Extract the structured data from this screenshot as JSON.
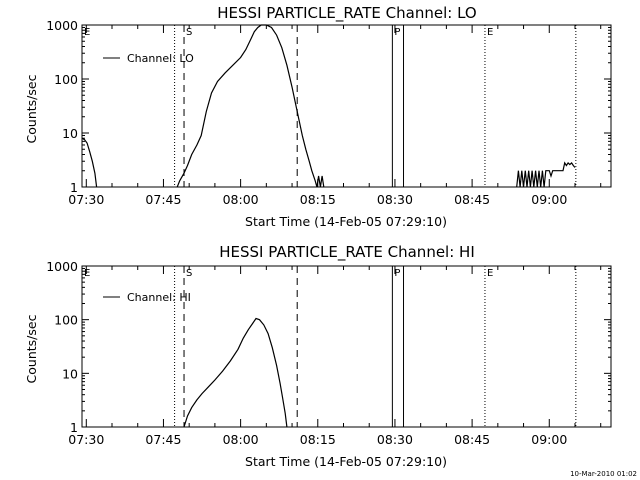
{
  "footer_timestamp": "10-Mar-2010 01:02",
  "chart_data": [
    {
      "type": "line",
      "title": "HESSI PARTICLE_RATE Channel: LO",
      "xlabel": "Start Time (14-Feb-05 07:29:10)",
      "ylabel": "Counts/sec",
      "y_scale": "log",
      "ylim": [
        1,
        1000
      ],
      "y_ticks": [
        {
          "value": 1,
          "label": "1"
        },
        {
          "value": 10,
          "label": "10"
        },
        {
          "value": 100,
          "label": "100"
        },
        {
          "value": 1000,
          "label": "1000"
        }
      ],
      "xlim": [
        "07:29:10",
        "09:12:00"
      ],
      "x_ticks": [
        {
          "time": "07:30",
          "label": "07:30"
        },
        {
          "time": "07:45",
          "label": "07:45"
        },
        {
          "time": "08:00",
          "label": "08:00"
        },
        {
          "time": "08:15",
          "label": "08:15"
        },
        {
          "time": "08:30",
          "label": "08:30"
        },
        {
          "time": "08:45",
          "label": "08:45"
        },
        {
          "time": "09:00",
          "label": "09:00"
        }
      ],
      "legend": {
        "label": "Channel: LO",
        "position": "top-left"
      },
      "markers": [
        {
          "time": "07:29:10",
          "label": "E",
          "style": "dotted"
        },
        {
          "time": "07:47:10",
          "label": "",
          "style": "dotted"
        },
        {
          "time": "07:49:00",
          "label": "S",
          "style": "dashed"
        },
        {
          "time": "08:11:00",
          "label": "",
          "style": "dashed"
        },
        {
          "time": "08:29:30",
          "label": "P",
          "style": "solid"
        },
        {
          "time": "08:31:40",
          "label": "",
          "style": "solid"
        },
        {
          "time": "08:47:30",
          "label": "E",
          "style": "dotted"
        },
        {
          "time": "09:05:10",
          "label": "",
          "style": "dotted"
        }
      ],
      "series": [
        {
          "name": "Channel: LO",
          "segments": [
            [
              [
                "07:29:10",
                8
              ],
              [
                "07:29:40",
                7.5
              ],
              [
                "07:30:10",
                6.5
              ],
              [
                "07:30:40",
                4.5
              ],
              [
                "07:31:10",
                3
              ],
              [
                "07:31:40",
                1.8
              ],
              [
                "07:32:00",
                1
              ]
            ],
            [
              [
                "07:47:40",
                1
              ],
              [
                "07:48:10",
                1.3
              ],
              [
                "07:49:00",
                1.8
              ],
              [
                "07:49:40",
                2.5
              ],
              [
                "07:50:30",
                4
              ],
              [
                "07:51:30",
                6
              ],
              [
                "07:52:20",
                9
              ],
              [
                "07:53:20",
                25
              ],
              [
                "07:54:20",
                55
              ],
              [
                "07:55:30",
                90
              ],
              [
                "07:57:00",
                130
              ],
              [
                "07:58:30",
                180
              ],
              [
                "08:00:00",
                250
              ],
              [
                "08:01:00",
                350
              ],
              [
                "08:02:00",
                550
              ],
              [
                "08:02:40",
                750
              ],
              [
                "08:03:20",
                900
              ],
              [
                "08:04:00",
                1000
              ],
              [
                "08:05:00",
                1000
              ],
              [
                "08:06:00",
                900
              ],
              [
                "08:07:00",
                650
              ],
              [
                "08:08:00",
                380
              ],
              [
                "08:09:00",
                180
              ],
              [
                "08:10:00",
                70
              ],
              [
                "08:11:00",
                25
              ],
              [
                "08:12:00",
                9
              ],
              [
                "08:12:40",
                5
              ],
              [
                "08:13:20",
                3
              ],
              [
                "08:13:50",
                2
              ],
              [
                "08:14:30",
                1.3
              ],
              [
                "08:14:50",
                1
              ],
              [
                "08:15:10",
                1.6
              ],
              [
                "08:15:30",
                1
              ],
              [
                "08:15:50",
                1.6
              ],
              [
                "08:16:10",
                1
              ]
            ],
            [
              [
                "08:53:40",
                1
              ],
              [
                "08:54:00",
                2
              ],
              [
                "08:54:20",
                1
              ],
              [
                "08:54:40",
                2
              ],
              [
                "08:55:00",
                1
              ],
              [
                "08:55:20",
                2
              ],
              [
                "08:55:40",
                1
              ],
              [
                "08:56:00",
                2
              ],
              [
                "08:56:20",
                1
              ],
              [
                "08:56:40",
                2
              ],
              [
                "08:57:00",
                1
              ],
              [
                "08:57:20",
                2
              ],
              [
                "08:57:40",
                1
              ],
              [
                "08:58:00",
                2
              ],
              [
                "08:58:20",
                1
              ],
              [
                "08:58:40",
                2
              ],
              [
                "08:59:00",
                1
              ],
              [
                "08:59:20",
                2
              ],
              [
                "08:59:40",
                2
              ],
              [
                "09:00:00",
                2
              ],
              [
                "09:00:20",
                1.6
              ],
              [
                "09:00:40",
                2
              ],
              [
                "09:01:00",
                2
              ],
              [
                "09:01:20",
                2
              ],
              [
                "09:01:40",
                2
              ],
              [
                "09:02:00",
                2
              ],
              [
                "09:02:20",
                2
              ],
              [
                "09:02:40",
                2
              ],
              [
                "09:03:00",
                2.8
              ],
              [
                "09:03:20",
                2.5
              ],
              [
                "09:03:40",
                2.8
              ],
              [
                "09:04:00",
                2.6
              ],
              [
                "09:04:20",
                2.8
              ],
              [
                "09:04:40",
                2.5
              ],
              [
                "09:05:00",
                2.3
              ]
            ]
          ]
        }
      ]
    },
    {
      "type": "line",
      "title": "HESSI PARTICLE_RATE Channel: HI",
      "xlabel": "Start Time (14-Feb-05 07:29:10)",
      "ylabel": "Counts/sec",
      "y_scale": "log",
      "ylim": [
        1,
        1000
      ],
      "y_ticks": [
        {
          "value": 1,
          "label": "1"
        },
        {
          "value": 10,
          "label": "10"
        },
        {
          "value": 100,
          "label": "100"
        },
        {
          "value": 1000,
          "label": "1000"
        }
      ],
      "xlim": [
        "07:29:10",
        "09:12:00"
      ],
      "x_ticks": [
        {
          "time": "07:30",
          "label": "07:30"
        },
        {
          "time": "07:45",
          "label": "07:45"
        },
        {
          "time": "08:00",
          "label": "08:00"
        },
        {
          "time": "08:15",
          "label": "08:15"
        },
        {
          "time": "08:30",
          "label": "08:30"
        },
        {
          "time": "08:45",
          "label": "08:45"
        },
        {
          "time": "09:00",
          "label": "09:00"
        }
      ],
      "legend": {
        "label": "Channel: HI",
        "position": "top-left"
      },
      "markers": [
        {
          "time": "07:29:10",
          "label": "E",
          "style": "dotted"
        },
        {
          "time": "07:47:10",
          "label": "",
          "style": "dotted"
        },
        {
          "time": "07:49:00",
          "label": "S",
          "style": "dashed"
        },
        {
          "time": "08:11:00",
          "label": "",
          "style": "dashed"
        },
        {
          "time": "08:29:30",
          "label": "P",
          "style": "solid"
        },
        {
          "time": "08:31:40",
          "label": "",
          "style": "solid"
        },
        {
          "time": "08:47:30",
          "label": "E",
          "style": "dotted"
        },
        {
          "time": "09:05:10",
          "label": "",
          "style": "dotted"
        }
      ],
      "series": [
        {
          "name": "Channel: HI",
          "segments": [
            [
              [
                "07:49:00",
                1
              ],
              [
                "07:49:40",
                1.6
              ],
              [
                "07:50:30",
                2.3
              ],
              [
                "07:51:30",
                3.2
              ],
              [
                "07:52:30",
                4.2
              ],
              [
                "07:53:40",
                5.5
              ],
              [
                "07:55:00",
                7.5
              ],
              [
                "07:56:30",
                11
              ],
              [
                "07:58:00",
                17
              ],
              [
                "07:59:30",
                28
              ],
              [
                "08:00:30",
                45
              ],
              [
                "08:01:30",
                65
              ],
              [
                "08:02:20",
                85
              ],
              [
                "08:03:00",
                105
              ],
              [
                "08:03:40",
                100
              ],
              [
                "08:04:30",
                80
              ],
              [
                "08:05:20",
                55
              ],
              [
                "08:06:10",
                30
              ],
              [
                "08:07:00",
                14
              ],
              [
                "08:07:40",
                6.5
              ],
              [
                "08:08:10",
                3.5
              ],
              [
                "08:08:40",
                1.8
              ],
              [
                "08:09:00",
                1
              ]
            ]
          ]
        }
      ]
    }
  ]
}
